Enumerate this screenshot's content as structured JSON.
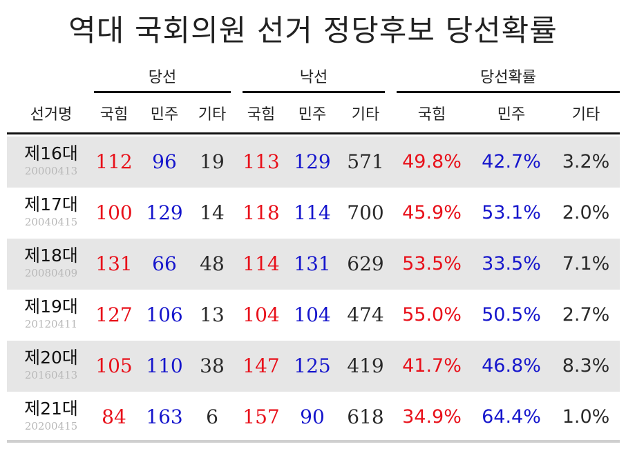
{
  "chart_data": {
    "type": "table",
    "title": "역대 국회의원 선거 정당후보 당선확률",
    "groups": [
      "당선",
      "낙선",
      "당선확률"
    ],
    "columns": [
      "선거명",
      "국힘",
      "민주",
      "기타",
      "국힘",
      "민주",
      "기타",
      "국힘",
      "민주",
      "기타"
    ],
    "rows": [
      {
        "name": "제16대",
        "date": "20000413",
        "won": [
          112,
          96,
          19
        ],
        "lost": [
          113,
          129,
          571
        ],
        "rate": [
          "49.8%",
          "42.7%",
          "3.2%"
        ]
      },
      {
        "name": "제17대",
        "date": "20040415",
        "won": [
          100,
          129,
          14
        ],
        "lost": [
          118,
          114,
          700
        ],
        "rate": [
          "45.9%",
          "53.1%",
          "2.0%"
        ]
      },
      {
        "name": "제18대",
        "date": "20080409",
        "won": [
          131,
          66,
          48
        ],
        "lost": [
          114,
          131,
          629
        ],
        "rate": [
          "53.5%",
          "33.5%",
          "7.1%"
        ]
      },
      {
        "name": "제19대",
        "date": "20120411",
        "won": [
          127,
          106,
          13
        ],
        "lost": [
          104,
          104,
          474
        ],
        "rate": [
          "55.0%",
          "50.5%",
          "2.7%"
        ]
      },
      {
        "name": "제20대",
        "date": "20160413",
        "won": [
          105,
          110,
          38
        ],
        "lost": [
          147,
          125,
          419
        ],
        "rate": [
          "41.7%",
          "46.8%",
          "8.3%"
        ]
      },
      {
        "name": "제21대",
        "date": "20200415",
        "won": [
          84,
          163,
          6
        ],
        "lost": [
          157,
          90,
          618
        ],
        "rate": [
          "34.9%",
          "64.4%",
          "1.0%"
        ]
      }
    ],
    "colors": {
      "ppp": "#e8101a",
      "dem": "#1515cc",
      "other": "#2a2a2a",
      "shade": "#e6e6e6"
    }
  }
}
